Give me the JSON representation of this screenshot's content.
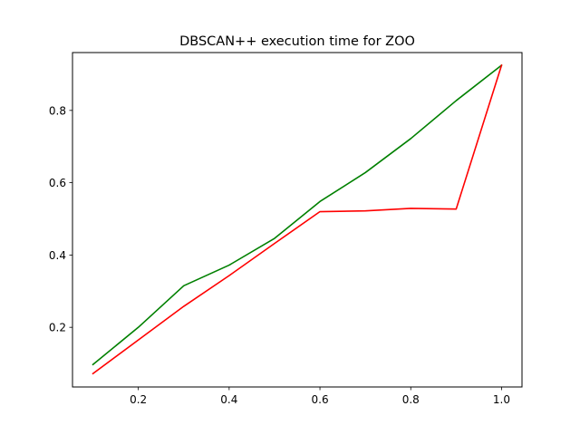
{
  "chart_data": {
    "type": "line",
    "title": "DBSCAN++  execution time for ZOO",
    "xlabel": "",
    "ylabel": "",
    "xlim": [
      0.055,
      1.045
    ],
    "ylim": [
      0.035,
      0.96
    ],
    "xticks": [
      0.2,
      0.4,
      0.6,
      0.8,
      1.0
    ],
    "xtick_labels": [
      "0.2",
      "0.4",
      "0.6",
      "0.8",
      "1.0"
    ],
    "yticks": [
      0.2,
      0.4,
      0.6,
      0.8
    ],
    "ytick_labels": [
      "0.2",
      "0.4",
      "0.6",
      "0.8"
    ],
    "grid": false,
    "x": [
      0.1,
      0.2,
      0.3,
      0.4,
      0.5,
      0.6,
      0.7,
      0.8,
      0.9,
      1.0
    ],
    "series": [
      {
        "color": "#008000",
        "values": [
          0.097,
          0.2,
          0.315,
          0.372,
          0.446,
          0.548,
          0.628,
          0.722,
          0.827,
          0.925
        ]
      },
      {
        "color": "#ff0000",
        "values": [
          0.072,
          0.165,
          0.258,
          0.343,
          0.432,
          0.52,
          0.522,
          0.529,
          0.527,
          0.925
        ]
      }
    ]
  }
}
